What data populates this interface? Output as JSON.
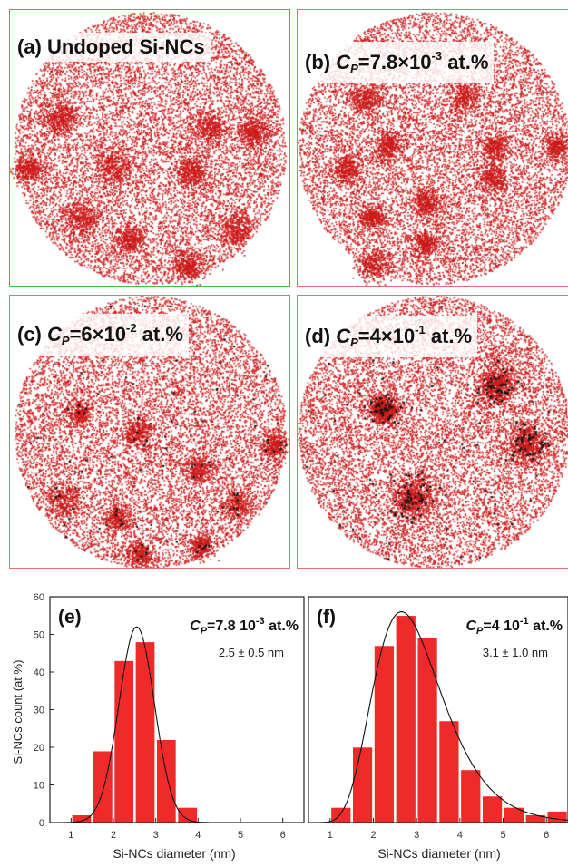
{
  "colors": {
    "atom_red": "#cc1a1a",
    "dopant_black": "#111111",
    "bar_red": "#ee2b2b",
    "frame_green": "#44bb44",
    "frame_red": "#e07070"
  },
  "maps": [
    {
      "letter": "(a)",
      "text": "Undoped Si-NCs"
    },
    {
      "letter": "(b)",
      "var": "C",
      "sub": "P",
      "pre": "=7.8×10",
      "sup": "-3",
      "post": " at.%"
    },
    {
      "letter": "(c)",
      "var": "C",
      "sub": "P",
      "pre": "=6×10",
      "sup": "-2",
      "post": " at.%"
    },
    {
      "letter": "(d)",
      "var": "C",
      "sub": "P",
      "pre": "=4×10",
      "sup": "-1",
      "post": " at.%"
    }
  ],
  "chart_data": [
    {
      "type": "bar",
      "panel": "(e)",
      "legend_var": "C",
      "legend_sub": "P",
      "legend_rest": "=7.8 10",
      "legend_sup": "-3",
      "legend_post": " at.%",
      "fit_label": "2.5 ± 0.5 nm",
      "ylabel": "Si-NCs count (at %)",
      "xlabel": "Si-NCs diameter (nm)",
      "xlim": [
        0.5,
        6.5
      ],
      "ylim": [
        0,
        60
      ],
      "xticks": [
        "1",
        "2",
        "3",
        "4",
        "5",
        "6"
      ],
      "yticks": [
        "0",
        "10",
        "20",
        "30",
        "40",
        "50",
        "60"
      ],
      "bar_centers": [
        1.25,
        1.75,
        2.25,
        2.75,
        3.25,
        3.75
      ],
      "values": [
        2,
        19,
        43,
        48,
        22,
        4
      ],
      "fit": {
        "mean": 2.55,
        "sigma": 0.42,
        "peak": 52
      }
    },
    {
      "type": "bar",
      "panel": "(f)",
      "legend_var": "C",
      "legend_sub": "P",
      "legend_rest": "=4 10",
      "legend_sup": "-1",
      "legend_post": " at.%",
      "fit_label": "3.1 ± 1.0 nm",
      "ylabel": "",
      "xlabel": "Si-NCs diameter (nm)",
      "xlim": [
        0.5,
        6.5
      ],
      "ylim": [
        0,
        60
      ],
      "xticks": [
        "1",
        "2",
        "3",
        "4",
        "5",
        "6"
      ],
      "bar_centers": [
        1.25,
        1.75,
        2.25,
        2.75,
        3.25,
        3.75,
        4.25,
        4.75,
        5.25,
        5.75,
        6.25
      ],
      "values": [
        4,
        20,
        47,
        55,
        49,
        27,
        14,
        7,
        4,
        2,
        3
      ],
      "fit": {
        "lognormal": true,
        "mode": 2.65,
        "sigma": 0.3,
        "peak": 56
      }
    }
  ]
}
